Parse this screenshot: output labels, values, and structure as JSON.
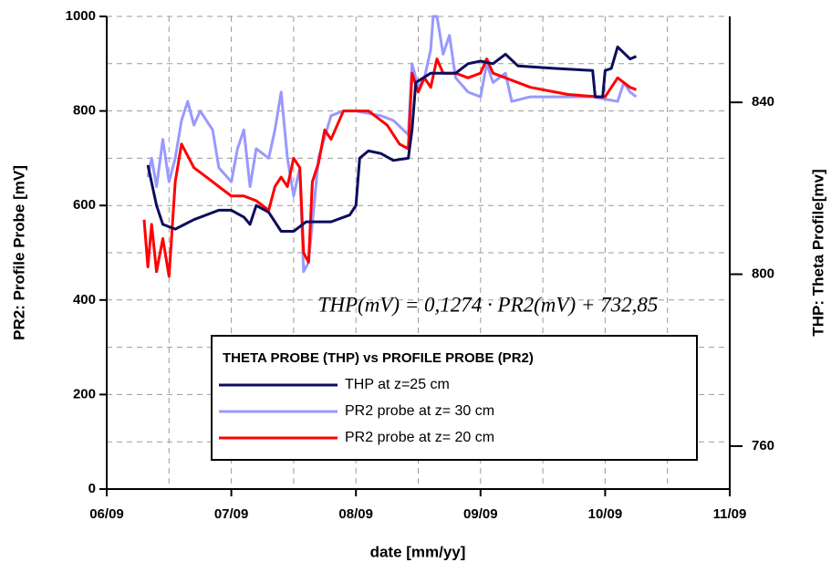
{
  "chart_data": {
    "type": "line",
    "xlabel": "date [mm/yy]",
    "ylabel": "PR2: Profile Probe [mV]",
    "y2label": "THP: Theta Profile[mv]",
    "annotation": "THP(mV) = 0,1274 · PR2(mV) + 732,85",
    "legend_title": "THETA PROBE (THP)  vs PROFILE PROBE (PR2)",
    "grid": true,
    "xlim": [
      6,
      11
    ],
    "xticks": [
      {
        "value": 6,
        "label": "06/09"
      },
      {
        "value": 7,
        "label": "07/09"
      },
      {
        "value": 8,
        "label": "08/09"
      },
      {
        "value": 9,
        "label": "09/09"
      },
      {
        "value": 10,
        "label": "10/09"
      },
      {
        "value": 11,
        "label": "11/09"
      }
    ],
    "ylim": [
      0,
      1000
    ],
    "yticks": [
      0,
      200,
      400,
      600,
      800,
      1000
    ],
    "y2lim": [
      750,
      860
    ],
    "y2ticks": [
      760,
      800,
      840
    ],
    "series": [
      {
        "name": "THP at z=25 cm",
        "color": "#0d0d5c",
        "axis": "y2",
        "x": [
          6.33,
          6.4,
          6.45,
          6.55,
          6.7,
          6.9,
          7.0,
          7.1,
          7.15,
          7.2,
          7.3,
          7.4,
          7.5,
          7.6,
          7.8,
          7.95,
          8.0,
          8.03,
          8.1,
          8.2,
          8.3,
          8.42,
          8.45,
          8.48,
          8.6,
          8.8,
          8.9,
          9.0,
          9.1,
          9.2,
          9.3,
          9.6,
          9.9,
          9.92,
          9.98,
          10.0,
          10.05,
          10.1,
          10.2,
          10.25
        ],
        "values": [
          825.4,
          816,
          811.6,
          810.5,
          812.7,
          814.9,
          814.9,
          813.3,
          811.6,
          816,
          814.4,
          810,
          810,
          812.2,
          812.2,
          813.8,
          816,
          827,
          828.7,
          828.1,
          826.5,
          827,
          833.6,
          844.6,
          846.8,
          846.8,
          849,
          849.6,
          849,
          851.2,
          848.5,
          847.9,
          847.4,
          841.3,
          841.3,
          847.4,
          847.9,
          852.9,
          850.1,
          850.7
        ]
      },
      {
        "name": "PR2 probe at  z= 30 cm",
        "color": "#9999ff",
        "x": [
          6.33,
          6.36,
          6.4,
          6.45,
          6.5,
          6.55,
          6.6,
          6.65,
          6.7,
          6.75,
          6.85,
          6.9,
          7.0,
          7.05,
          7.1,
          7.15,
          7.2,
          7.3,
          7.35,
          7.4,
          7.45,
          7.5,
          7.55,
          7.58,
          7.62,
          7.7,
          7.8,
          7.9,
          8.0,
          8.2,
          8.3,
          8.42,
          8.45,
          8.5,
          8.55,
          8.6,
          8.62,
          8.65,
          8.7,
          8.75,
          8.8,
          8.9,
          9.0,
          9.05,
          9.1,
          9.2,
          9.25,
          9.4,
          9.9,
          10.1,
          10.15,
          10.2,
          10.25
        ],
        "values": [
          660,
          700,
          640,
          740,
          650,
          700,
          780,
          820,
          770,
          800,
          760,
          680,
          650,
          720,
          760,
          640,
          720,
          700,
          760,
          840,
          700,
          620,
          680,
          460,
          480,
          700,
          790,
          800,
          800,
          790,
          780,
          750,
          900,
          850,
          870,
          930,
          1000,
          1000,
          920,
          960,
          870,
          840,
          830,
          900,
          860,
          880,
          820,
          830,
          830,
          820,
          860,
          840,
          830
        ]
      },
      {
        "name": "PR2 probe at  z= 20 cm",
        "color": "#ff0000",
        "x": [
          6.3,
          6.33,
          6.36,
          6.4,
          6.45,
          6.5,
          6.55,
          6.6,
          6.7,
          6.8,
          6.9,
          7.0,
          7.1,
          7.2,
          7.3,
          7.35,
          7.4,
          7.45,
          7.5,
          7.55,
          7.58,
          7.62,
          7.65,
          7.7,
          7.75,
          7.8,
          7.9,
          8.0,
          8.1,
          8.25,
          8.35,
          8.42,
          8.45,
          8.5,
          8.55,
          8.6,
          8.65,
          8.7,
          8.8,
          8.9,
          9.0,
          9.05,
          9.1,
          9.2,
          9.4,
          9.7,
          9.95,
          10.0,
          10.05,
          10.1,
          10.2,
          10.25
        ],
        "values": [
          570,
          470,
          560,
          460,
          530,
          450,
          650,
          730,
          680,
          660,
          640,
          620,
          620,
          610,
          590,
          640,
          660,
          640,
          700,
          680,
          500,
          480,
          650,
          690,
          760,
          740,
          800,
          800,
          800,
          770,
          730,
          720,
          880,
          840,
          870,
          850,
          910,
          880,
          880,
          870,
          880,
          910,
          880,
          870,
          850,
          835,
          830,
          830,
          850,
          870,
          850,
          845
        ]
      }
    ]
  }
}
